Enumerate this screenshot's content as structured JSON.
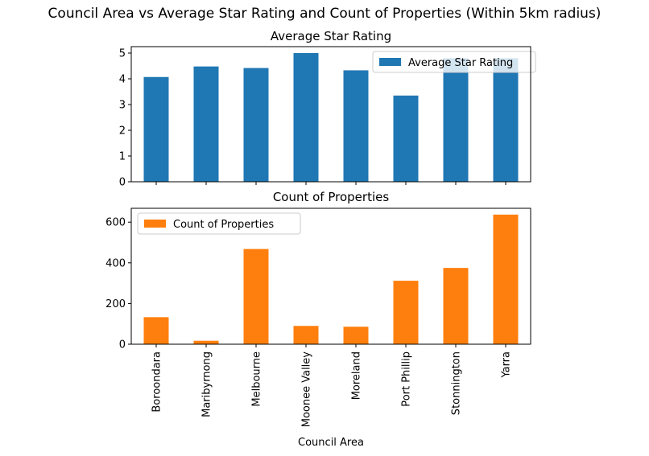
{
  "suptitle": "Council Area vs Average Star Rating and Count of Properties (Within 5km radius)",
  "chart_data": [
    {
      "type": "bar",
      "title": "Average Star Rating",
      "categories": [
        "Boroondara",
        "Maribyrnong",
        "Melbourne",
        "Moonee Valley",
        "Moreland",
        "Port Phillip",
        "Stonnington",
        "Yarra"
      ],
      "series": [
        {
          "name": "Average Star Rating",
          "values": [
            4.07,
            4.48,
            4.42,
            5.0,
            4.33,
            3.35,
            4.8,
            4.8
          ],
          "color": "#1f77b4"
        }
      ],
      "ylim": [
        0,
        5.25
      ],
      "yticks": [
        0,
        1,
        2,
        3,
        4,
        5
      ],
      "xlabel": "",
      "ylabel": "",
      "legend": "top-right",
      "grid": false,
      "show_x_tick_labels": false
    },
    {
      "type": "bar",
      "title": "Count of Properties",
      "categories": [
        "Boroondara",
        "Maribyrnong",
        "Melbourne",
        "Moonee Valley",
        "Moreland",
        "Port Phillip",
        "Stonnington",
        "Yarra"
      ],
      "series": [
        {
          "name": "Count of Properties",
          "values": [
            133,
            17,
            468,
            90,
            86,
            312,
            375,
            637
          ],
          "color": "#ff7f0e"
        }
      ],
      "ylim": [
        0,
        668
      ],
      "yticks": [
        0,
        200,
        400,
        600
      ],
      "xlabel": "Council Area",
      "ylabel": "",
      "legend": "top-left",
      "grid": false,
      "show_x_tick_labels": true
    }
  ]
}
